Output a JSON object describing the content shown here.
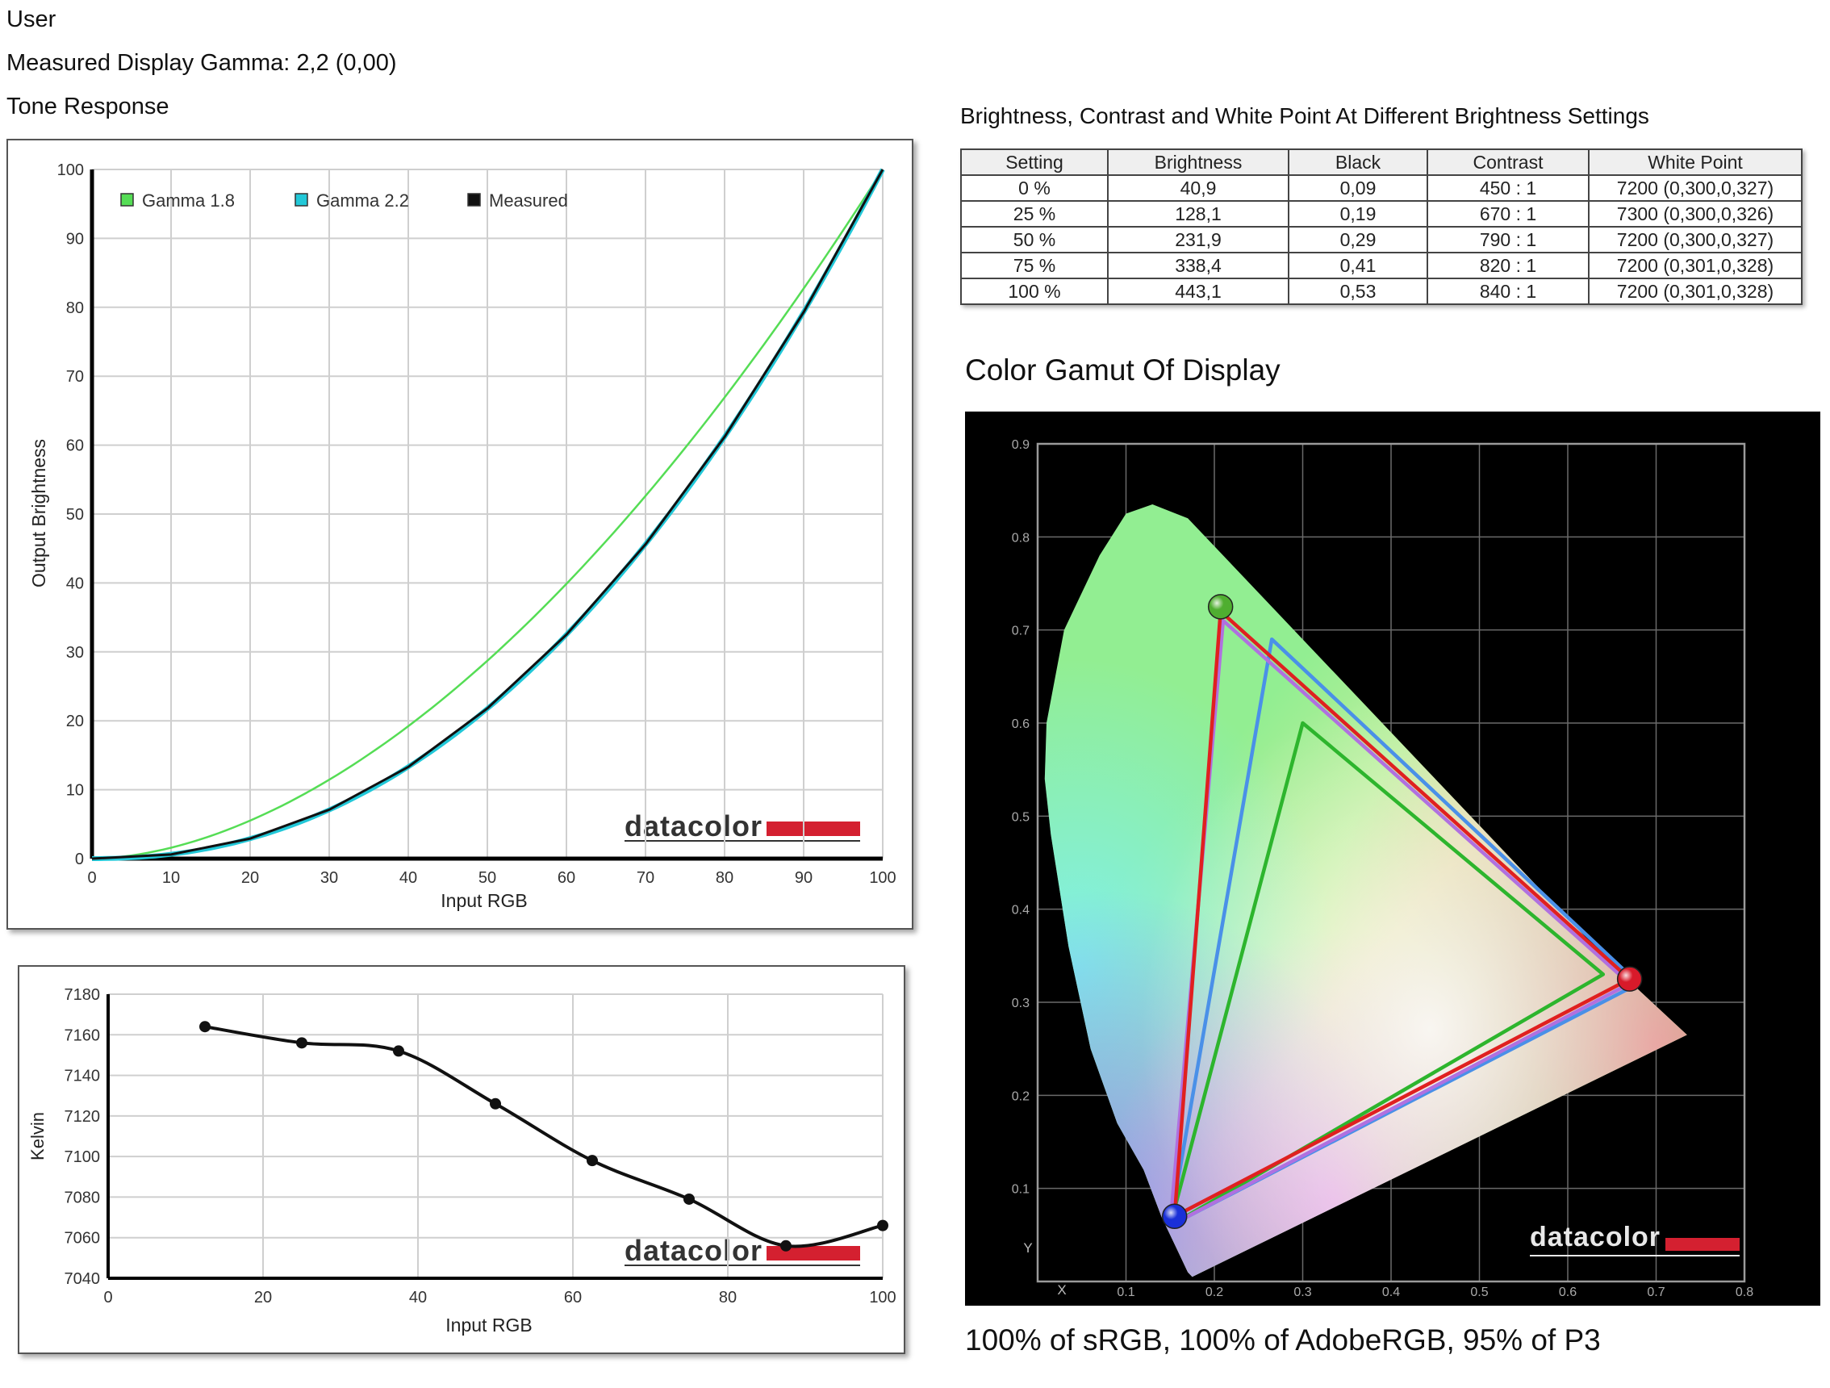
{
  "header": {
    "user": "User",
    "gamma_line": "Measured Display Gamma: 2,2 (0,00)",
    "tone_title": "Tone Response",
    "table_title": "Brightness, Contrast and White Point At Different Brightness Settings",
    "gamut_title": "Color Gamut Of Display",
    "gamut_caption": "100% of sRGB, 100% of AdobeRGB, 95% of P3"
  },
  "brand": "datacolor",
  "table": {
    "columns": [
      "Setting",
      "Brightness",
      "Black",
      "Contrast",
      "White Point"
    ],
    "rows": [
      [
        "0 %",
        "40,9",
        "0,09",
        "450 : 1",
        "7200 (0,300,0,327)"
      ],
      [
        "25 %",
        "128,1",
        "0,19",
        "670 : 1",
        "7300 (0,300,0,326)"
      ],
      [
        "50 %",
        "231,9",
        "0,29",
        "790 : 1",
        "7200 (0,300,0,327)"
      ],
      [
        "75 %",
        "338,4",
        "0,41",
        "820 : 1",
        "7200 (0,301,0,328)"
      ],
      [
        "100 %",
        "443,1",
        "0,53",
        "840 : 1",
        "7200 (0,301,0,328)"
      ]
    ]
  },
  "chart_data": [
    {
      "type": "line",
      "xlabel": "Input RGB",
      "ylabel": "Output Brightness",
      "xlim": [
        0,
        100
      ],
      "ylim": [
        0,
        100
      ],
      "xticks": [
        0,
        10,
        20,
        30,
        40,
        50,
        60,
        70,
        80,
        90,
        100
      ],
      "yticks": [
        0,
        10,
        20,
        30,
        40,
        50,
        60,
        70,
        80,
        90,
        100
      ],
      "grid": true,
      "legend_position": "top-left",
      "series": [
        {
          "name": "Gamma 1.8",
          "color": "#55dd55",
          "gamma": 1.8
        },
        {
          "name": "Gamma 2.2",
          "color": "#22c8d8",
          "gamma": 2.2
        },
        {
          "name": "Measured",
          "color": "#111111",
          "x": [
            0,
            10,
            20,
            30,
            40,
            50,
            60,
            70,
            80,
            90,
            100
          ],
          "y": [
            0,
            0.6,
            2.9,
            7.1,
            13.3,
            21.8,
            32.5,
            45.6,
            61.2,
            79.3,
            100
          ]
        }
      ]
    },
    {
      "type": "line",
      "xlabel": "Input RGB",
      "ylabel": "Kelvin",
      "xlim": [
        0,
        100
      ],
      "ylim": [
        7040,
        7180
      ],
      "xticks": [
        0,
        20,
        40,
        60,
        80,
        100
      ],
      "yticks": [
        7040,
        7060,
        7080,
        7100,
        7120,
        7140,
        7160,
        7180
      ],
      "grid": true,
      "series": [
        {
          "color": "#111111",
          "x": [
            12.5,
            25,
            37.5,
            50,
            62.5,
            75,
            87.5,
            100
          ],
          "y": [
            7164,
            7156,
            7152,
            7126,
            7098,
            7079,
            7056,
            7066
          ]
        }
      ]
    },
    {
      "type": "scatter",
      "title": "Color Gamut Of Display",
      "xlabel": "X",
      "ylabel": "Y",
      "xlim": [
        0,
        0.8
      ],
      "ylim": [
        0,
        0.9
      ],
      "xticks": [
        0.1,
        0.2,
        0.3,
        0.4,
        0.5,
        0.6,
        0.7,
        0.8
      ],
      "yticks": [
        0.1,
        0.2,
        0.3,
        0.4,
        0.5,
        0.6,
        0.7,
        0.8,
        0.9
      ],
      "grid": true,
      "background": "#000000",
      "gamuts": [
        {
          "color": "#2db52d",
          "points": [
            [
              0.3,
              0.6
            ],
            [
              0.64,
              0.33
            ],
            [
              0.15,
              0.06
            ]
          ]
        },
        {
          "color": "#4a90e8",
          "points": [
            [
              0.265,
              0.69
            ],
            [
              0.68,
              0.32
            ],
            [
              0.15,
              0.06
            ]
          ]
        },
        {
          "color": "#b070e0",
          "points": [
            [
              0.21,
              0.71
            ],
            [
              0.67,
              0.32
            ],
            [
              0.15,
              0.06
            ]
          ]
        },
        {
          "color": "#e02020",
          "points": [
            [
              0.207,
              0.72
            ],
            [
              0.67,
              0.325
            ],
            [
              0.155,
              0.07
            ]
          ]
        }
      ],
      "primaries": [
        {
          "color": "#4fae30",
          "x": 0.207,
          "y": 0.725
        },
        {
          "color": "#d81a2a",
          "x": 0.67,
          "y": 0.325
        },
        {
          "color": "#1a30d8",
          "x": 0.155,
          "y": 0.07
        }
      ]
    }
  ]
}
